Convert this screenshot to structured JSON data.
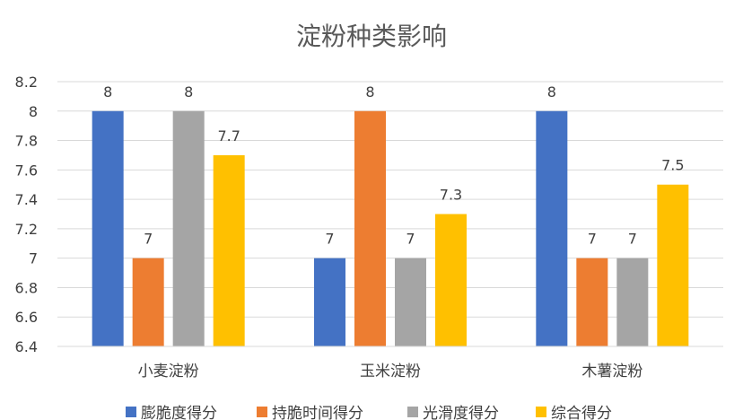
{
  "chart_data": {
    "type": "bar",
    "title": "淀粉种类影响",
    "categories": [
      "小麦淀粉",
      "玉米淀粉",
      "木薯淀粉"
    ],
    "series": [
      {
        "name": "膨脆度得分",
        "color": "#4472C4",
        "values": [
          8,
          7,
          8
        ],
        "labels": [
          "8",
          "7",
          "8"
        ]
      },
      {
        "name": "持脆时间得分",
        "color": "#ED7D31",
        "values": [
          7,
          8,
          7
        ],
        "labels": [
          "7",
          "8",
          "7"
        ]
      },
      {
        "name": "光滑度得分",
        "color": "#A5A5A5",
        "values": [
          8,
          7,
          7
        ],
        "labels": [
          "8",
          "7",
          "7"
        ]
      },
      {
        "name": "综合得分",
        "color": "#FFC000",
        "values": [
          7.7,
          7.3,
          7.5
        ],
        "labels": [
          "7.7",
          "7.3",
          "7.5"
        ]
      }
    ],
    "ylim": [
      6.4,
      8.2
    ],
    "yticks": [
      "6.4",
      "6.6",
      "6.8",
      "7",
      "7.2",
      "7.4",
      "7.6",
      "7.8",
      "8",
      "8.2"
    ],
    "grid": true,
    "legend_position": "bottom"
  }
}
